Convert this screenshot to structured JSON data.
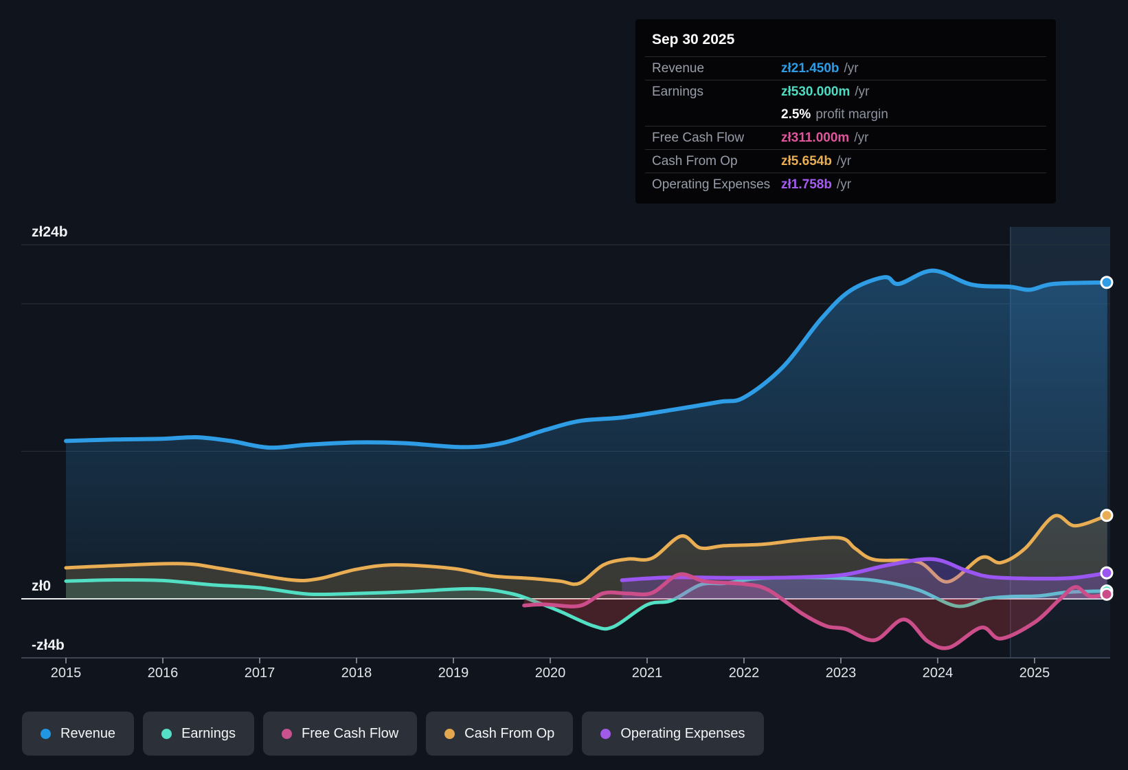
{
  "tooltip": {
    "date": "Sep 30 2025",
    "rows": [
      {
        "id": "revenue",
        "label": "Revenue",
        "value": "zł21.450b",
        "suffix": "/yr",
        "color": "#2e9de6"
      },
      {
        "id": "earnings",
        "label": "Earnings",
        "value": "zł530.000m",
        "suffix": "/yr",
        "color": "#4fdcc3"
      },
      {
        "id": "fcf",
        "label": "Free Cash Flow",
        "value": "zł311.000m",
        "suffix": "/yr",
        "color": "#e0569d"
      },
      {
        "id": "cashop",
        "label": "Cash From Op",
        "value": "zł5.654b",
        "suffix": "/yr",
        "color": "#e9ad53"
      },
      {
        "id": "opex",
        "label": "Operating Expenses",
        "value": "zł1.758b",
        "suffix": "/yr",
        "color": "#a55cf0"
      }
    ],
    "profit_margin": {
      "value": "2.5%",
      "text": "profit margin"
    }
  },
  "legend": {
    "items": [
      {
        "id": "revenue",
        "label": "Revenue",
        "color": "#2196e3"
      },
      {
        "id": "earnings",
        "label": "Earnings",
        "color": "#55dfc6"
      },
      {
        "id": "fcf",
        "label": "Free Cash Flow",
        "color": "#c9538e"
      },
      {
        "id": "cashop",
        "label": "Cash From Op",
        "color": "#e3a84e"
      },
      {
        "id": "opex",
        "label": "Operating Expenses",
        "color": "#a05ce8"
      }
    ]
  },
  "chart_data": {
    "type": "area",
    "currency_unit": "zł billions",
    "x_axis": {
      "ticks": [
        2015,
        2016,
        2017,
        2018,
        2019,
        2020,
        2021,
        2022,
        2023,
        2024,
        2025
      ]
    },
    "y_axis": {
      "range": [
        -4,
        24.8
      ],
      "gridlines": [
        {
          "value": 24,
          "label": "zł24b"
        },
        {
          "value": 20,
          "label": ""
        },
        {
          "value": 10,
          "label": ""
        },
        {
          "value": 0,
          "label": "zł0",
          "zero": true
        },
        {
          "value": -4,
          "label": "-zł4b",
          "axis": true
        }
      ]
    },
    "highlight_band": {
      "from_year": 2024.75,
      "to_year": 2025.78
    },
    "series": [
      {
        "id": "revenue",
        "name": "Revenue",
        "color": "#2e9de6",
        "line_width": 6,
        "fill": "gradient",
        "end_value": 21.45,
        "points": [
          [
            2015,
            10.7
          ],
          [
            2015.5,
            10.8
          ],
          [
            2016,
            10.85
          ],
          [
            2016.35,
            10.95
          ],
          [
            2016.7,
            10.7
          ],
          [
            2017.1,
            10.25
          ],
          [
            2017.5,
            10.45
          ],
          [
            2018,
            10.6
          ],
          [
            2018.5,
            10.55
          ],
          [
            2019.1,
            10.28
          ],
          [
            2019.5,
            10.55
          ],
          [
            2019.95,
            11.45
          ],
          [
            2020.3,
            12.05
          ],
          [
            2020.75,
            12.3
          ],
          [
            2021.25,
            12.8
          ],
          [
            2021.75,
            13.35
          ],
          [
            2022,
            13.65
          ],
          [
            2022.4,
            15.7
          ],
          [
            2022.8,
            19.0
          ],
          [
            2023.1,
            20.9
          ],
          [
            2023.45,
            21.8
          ],
          [
            2023.6,
            21.35
          ],
          [
            2023.95,
            22.25
          ],
          [
            2024.35,
            21.3
          ],
          [
            2024.75,
            21.15
          ],
          [
            2024.95,
            20.95
          ],
          [
            2025.2,
            21.35
          ],
          [
            2025.75,
            21.45
          ]
        ]
      },
      {
        "id": "cashop",
        "name": "Cash From Op",
        "color": "#e9ad53",
        "line_width": 5,
        "fill": "flat",
        "fill_color": "rgba(233,173,83,0.18)",
        "end_value": 5.654,
        "points": [
          [
            2015,
            2.1
          ],
          [
            2015.5,
            2.25
          ],
          [
            2016.2,
            2.38
          ],
          [
            2016.6,
            2.05
          ],
          [
            2017.3,
            1.3
          ],
          [
            2017.6,
            1.35
          ],
          [
            2018,
            2.0
          ],
          [
            2018.4,
            2.3
          ],
          [
            2019,
            2.05
          ],
          [
            2019.4,
            1.55
          ],
          [
            2019.8,
            1.38
          ],
          [
            2020.1,
            1.2
          ],
          [
            2020.3,
            1.05
          ],
          [
            2020.55,
            2.3
          ],
          [
            2020.8,
            2.7
          ],
          [
            2021.05,
            2.75
          ],
          [
            2021.35,
            4.25
          ],
          [
            2021.55,
            3.45
          ],
          [
            2021.8,
            3.6
          ],
          [
            2022.2,
            3.7
          ],
          [
            2022.6,
            4.0
          ],
          [
            2023,
            4.12
          ],
          [
            2023.15,
            3.4
          ],
          [
            2023.35,
            2.65
          ],
          [
            2023.8,
            2.5
          ],
          [
            2024.1,
            1.15
          ],
          [
            2024.45,
            2.8
          ],
          [
            2024.65,
            2.45
          ],
          [
            2024.9,
            3.4
          ],
          [
            2025.2,
            5.6
          ],
          [
            2025.42,
            4.95
          ],
          [
            2025.75,
            5.654
          ]
        ]
      },
      {
        "id": "earnings",
        "name": "Earnings",
        "color": "#52dfc4",
        "line_width": 5,
        "fill": "posneg",
        "fill_pos": "rgba(80,220,195,0.15)",
        "fill_neg": "rgba(205,60,75,0.28)",
        "end_value": 0.53,
        "points": [
          [
            2015,
            1.2
          ],
          [
            2015.5,
            1.28
          ],
          [
            2016,
            1.24
          ],
          [
            2016.5,
            0.95
          ],
          [
            2017,
            0.75
          ],
          [
            2017.5,
            0.32
          ],
          [
            2018,
            0.36
          ],
          [
            2018.5,
            0.47
          ],
          [
            2019.2,
            0.68
          ],
          [
            2019.6,
            0.35
          ],
          [
            2019.85,
            -0.2
          ],
          [
            2020.1,
            -0.85
          ],
          [
            2020.45,
            -1.85
          ],
          [
            2020.65,
            -1.9
          ],
          [
            2021,
            -0.4
          ],
          [
            2021.25,
            -0.12
          ],
          [
            2021.55,
            0.95
          ],
          [
            2021.8,
            1.05
          ],
          [
            2022.1,
            1.35
          ],
          [
            2022.5,
            1.45
          ],
          [
            2023,
            1.4
          ],
          [
            2023.4,
            1.2
          ],
          [
            2023.8,
            0.6
          ],
          [
            2024.2,
            -0.5
          ],
          [
            2024.5,
            0.0
          ],
          [
            2024.75,
            0.15
          ],
          [
            2025.05,
            0.2
          ],
          [
            2025.35,
            0.45
          ],
          [
            2025.75,
            0.53
          ]
        ]
      },
      {
        "id": "opex",
        "name": "Operating Expenses",
        "color": "#9b55f0",
        "line_width": 5.5,
        "fill": "flat",
        "fill_color": "rgba(150,90,240,0.28)",
        "end_value": 1.758,
        "points": [
          [
            2020.74,
            1.26
          ],
          [
            2021,
            1.38
          ],
          [
            2021.3,
            1.46
          ],
          [
            2022,
            1.42
          ],
          [
            2022.6,
            1.47
          ],
          [
            2023.05,
            1.65
          ],
          [
            2023.5,
            2.3
          ],
          [
            2023.95,
            2.69
          ],
          [
            2024.3,
            1.9
          ],
          [
            2024.55,
            1.48
          ],
          [
            2025,
            1.37
          ],
          [
            2025.4,
            1.42
          ],
          [
            2025.75,
            1.758
          ]
        ]
      },
      {
        "id": "fcf",
        "name": "Free Cash Flow",
        "color": "#cb4d89",
        "line_width": 5.5,
        "fill": "posneg",
        "fill_pos": "rgba(215,80,150,0.20)",
        "fill_neg": "rgba(205,60,75,0.28)",
        "end_value": 0.311,
        "points": [
          [
            2019.73,
            -0.45
          ],
          [
            2019.95,
            -0.38
          ],
          [
            2020.3,
            -0.48
          ],
          [
            2020.55,
            0.38
          ],
          [
            2020.8,
            0.36
          ],
          [
            2021.05,
            0.4
          ],
          [
            2021.33,
            1.65
          ],
          [
            2021.6,
            1.18
          ],
          [
            2022,
            1.0
          ],
          [
            2022.25,
            0.6
          ],
          [
            2022.6,
            -1.0
          ],
          [
            2022.85,
            -1.85
          ],
          [
            2023.05,
            -2.05
          ],
          [
            2023.35,
            -2.8
          ],
          [
            2023.65,
            -1.4
          ],
          [
            2023.9,
            -2.9
          ],
          [
            2024.12,
            -3.3
          ],
          [
            2024.45,
            -1.95
          ],
          [
            2024.65,
            -2.7
          ],
          [
            2025,
            -1.6
          ],
          [
            2025.25,
            -0.1
          ],
          [
            2025.42,
            0.8
          ],
          [
            2025.57,
            0.18
          ],
          [
            2025.75,
            0.311
          ]
        ]
      }
    ]
  }
}
